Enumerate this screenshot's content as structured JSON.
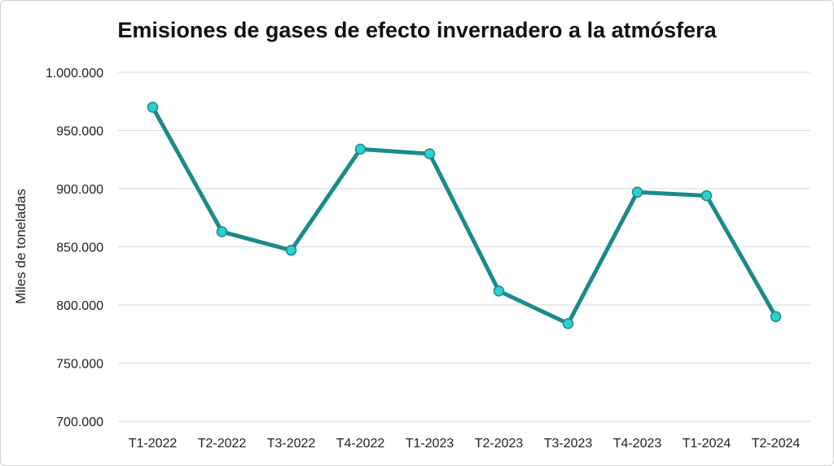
{
  "chart_data": {
    "type": "line",
    "title": "Emisiones de gases de efecto invernadero a la atmósfera",
    "xlabel": "",
    "ylabel": "Miles de toneladas",
    "categories": [
      "T1-2022",
      "T2-2022",
      "T3-2022",
      "T4-2022",
      "T1-2023",
      "T2-2023",
      "T3-2023",
      "T4-2023",
      "T1-2024",
      "T2-2024"
    ],
    "series": [
      {
        "values": [
          970000,
          863000,
          847000,
          934000,
          930000,
          812000,
          784000,
          897000,
          894000,
          790000
        ],
        "line_color": "#1a8a8a",
        "marker_color": "#2ecfcf"
      }
    ],
    "ylim": [
      700000,
      1000000
    ],
    "yticks": [
      700000,
      750000,
      800000,
      850000,
      900000,
      950000,
      1000000
    ],
    "ytick_labels": [
      "700.000",
      "750.000",
      "800.000",
      "850.000",
      "900.000",
      "950.000",
      "1.000.000"
    ],
    "grid": true,
    "legend": "none"
  }
}
